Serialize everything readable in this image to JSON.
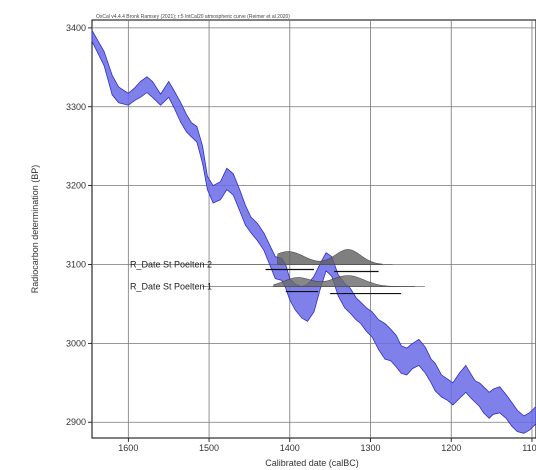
{
  "chart_data": {
    "type": "area",
    "header_note": "OxCal v4.4.4 Bronk Ramsey (2021); r:5 IntCal20 atmospheric curve (Reimer et al 2020)",
    "xlabel": "Calibrated date (calBC)",
    "ylabel": "Radiocarbon determination (BP)",
    "xlim": [
      1645,
      1095
    ],
    "ylim": [
      2880,
      3410
    ],
    "x_reversed": true,
    "grid": true,
    "x_ticks": [
      1600,
      1500,
      1400,
      1300,
      1200,
      1100
    ],
    "x_tick_labels": [
      "1600",
      "1500",
      "1400",
      "1300",
      "1200",
      "1100"
    ],
    "y_ticks": [
      2900,
      3000,
      3100,
      3200,
      3300,
      3400
    ],
    "y_tick_labels": [
      "2900",
      "3000",
      "3100",
      "3200",
      "3300",
      "3400"
    ],
    "curve": {
      "color": "#6a6ae8",
      "edge_color": "#2e2ec8",
      "x": [
        1645,
        1630,
        1620,
        1612,
        1600,
        1592,
        1585,
        1577,
        1570,
        1560,
        1550,
        1543,
        1535,
        1528,
        1522,
        1515,
        1508,
        1502,
        1495,
        1486,
        1478,
        1470,
        1462,
        1455,
        1448,
        1440,
        1432,
        1425,
        1418,
        1410,
        1405,
        1400,
        1393,
        1385,
        1378,
        1370,
        1362,
        1355,
        1348,
        1340,
        1332,
        1325,
        1318,
        1312,
        1305,
        1298,
        1290,
        1282,
        1275,
        1268,
        1262,
        1255,
        1248,
        1240,
        1232,
        1225,
        1220,
        1212,
        1205,
        1198,
        1190,
        1182,
        1175,
        1170,
        1165,
        1160,
        1153,
        1148,
        1140,
        1132,
        1125,
        1118,
        1110,
        1103,
        1095
      ],
      "upper": [
        3397,
        3370,
        3340,
        3325,
        3317,
        3324,
        3332,
        3338,
        3332,
        3316,
        3332,
        3320,
        3305,
        3290,
        3280,
        3275,
        3250,
        3212,
        3200,
        3205,
        3222,
        3215,
        3195,
        3175,
        3160,
        3152,
        3140,
        3125,
        3110,
        3108,
        3100,
        3082,
        3075,
        3072,
        3075,
        3085,
        3102,
        3115,
        3110,
        3087,
        3076,
        3070,
        3058,
        3052,
        3045,
        3040,
        3030,
        3025,
        3018,
        3010,
        2997,
        2994,
        3000,
        3005,
        2995,
        2980,
        2975,
        2960,
        2955,
        2950,
        2962,
        2972,
        2960,
        2952,
        2950,
        2945,
        2938,
        2942,
        2945,
        2935,
        2925,
        2915,
        2908,
        2912,
        2920
      ],
      "lower": [
        3383,
        3352,
        3315,
        3305,
        3302,
        3308,
        3312,
        3318,
        3312,
        3302,
        3312,
        3298,
        3280,
        3268,
        3262,
        3255,
        3228,
        3195,
        3178,
        3182,
        3195,
        3188,
        3168,
        3150,
        3140,
        3130,
        3118,
        3100,
        3082,
        3080,
        3070,
        3055,
        3042,
        3032,
        3028,
        3040,
        3070,
        3092,
        3085,
        3060,
        3045,
        3038,
        3030,
        3025,
        3015,
        3008,
        2992,
        2980,
        2978,
        2970,
        2962,
        2960,
        2968,
        2972,
        2962,
        2950,
        2940,
        2932,
        2928,
        2922,
        2930,
        2938,
        2930,
        2925,
        2920,
        2912,
        2905,
        2910,
        2912,
        2905,
        2895,
        2888,
        2886,
        2890,
        2898
      ]
    },
    "annotations": [
      {
        "label": "R_Date St Poelten 2",
        "label_at": [
          1598,
          3100
        ],
        "baseline_y": 3100,
        "peaks": [
          {
            "center": 1402,
            "width": 20,
            "height": 13
          },
          {
            "center": 1328,
            "width": 16,
            "height": 15
          }
        ],
        "range_start": 1415,
        "range_end": 1285,
        "ranges": [
          [
            1430,
            1370
          ],
          [
            1345,
            1290
          ]
        ],
        "fill": "#5f5f5f"
      },
      {
        "label": "R_Date St Poelten 1",
        "label_at": [
          1598,
          3072
        ],
        "baseline_y": 3072,
        "peaks": [
          {
            "center": 1390,
            "width": 17,
            "height": 9
          },
          {
            "center": 1328,
            "width": 20,
            "height": 11
          }
        ],
        "range_start": 1420,
        "range_end": 1245,
        "ranges": [
          [
            1405,
            1365
          ],
          [
            1350,
            1262
          ]
        ],
        "fill": "#6a6a6a"
      }
    ]
  }
}
